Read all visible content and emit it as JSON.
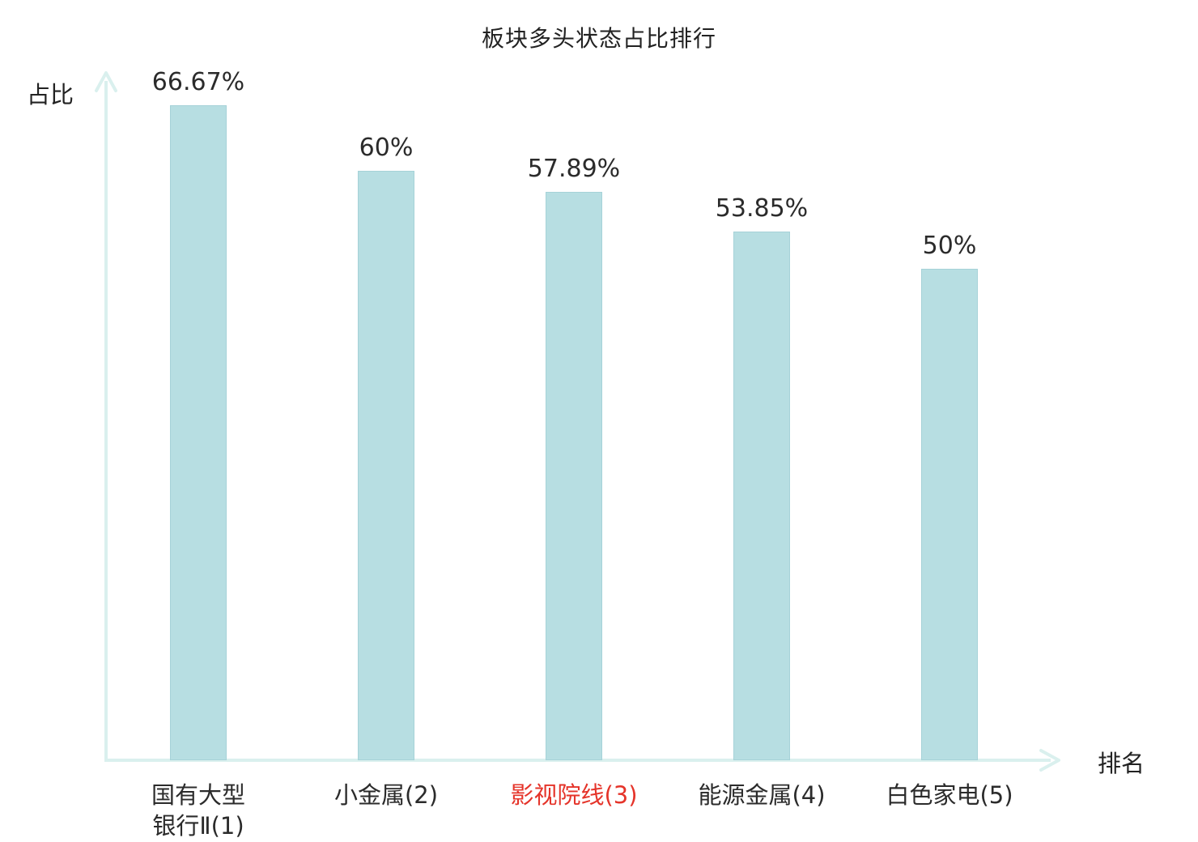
{
  "title": "板块多头状态占比排行",
  "axes": {
    "y_label": "占比",
    "x_label": "排名"
  },
  "chart_data": {
    "type": "bar",
    "title": "板块多头状态占比排行",
    "xlabel": "排名",
    "ylabel": "占比",
    "categories": [
      "国有大型银行Ⅱ(1)",
      "小金属(2)",
      "影视院线(3)",
      "能源金属(4)",
      "白色家电(5)"
    ],
    "tick_labels": [
      "国有大型\n银行Ⅱ(1)",
      "小金属(2)",
      "影视院线(3)",
      "能源金属(4)",
      "白色家电(5)"
    ],
    "values": [
      66.67,
      60,
      57.89,
      53.85,
      50
    ],
    "value_labels": [
      "66.67%",
      "60%",
      "57.89%",
      "53.85%",
      "50%"
    ],
    "ylim": [
      0,
      70
    ],
    "grid": false,
    "legend": "none",
    "highlight_index": 2,
    "highlight_color": "#e5342a",
    "bar_color": "#b7dee2",
    "bar_border_color": "#a6d2d8",
    "axis_color": "#daf0ee",
    "text_color": "#2b2b2b"
  }
}
